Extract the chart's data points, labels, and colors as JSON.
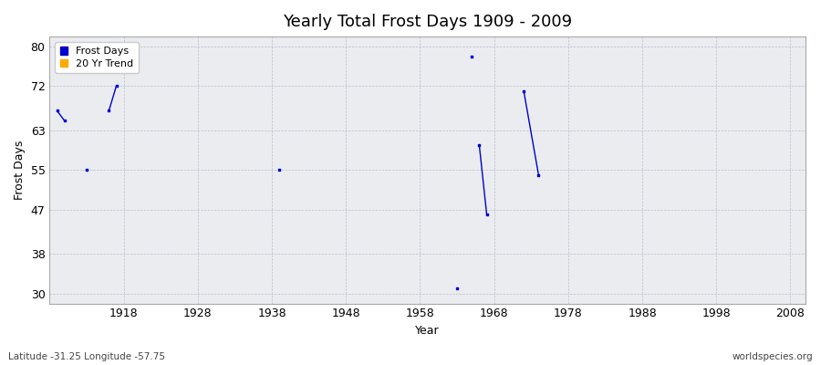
{
  "title": "Yearly Total Frost Days 1909 - 2009",
  "xlabel": "Year",
  "ylabel": "Frost Days",
  "xlim": [
    1908,
    2010
  ],
  "ylim": [
    28,
    82
  ],
  "yticks": [
    30,
    38,
    47,
    55,
    63,
    72,
    80
  ],
  "xticks": [
    1918,
    1928,
    1938,
    1948,
    1958,
    1968,
    1978,
    1988,
    1998,
    2008
  ],
  "background_color": "#ffffff",
  "plot_bg_color": "#eaecf0",
  "frost_days_color": "#0000cc",
  "trend_color": "#ffaa00",
  "frost_points": [
    [
      1909,
      67
    ],
    [
      1910,
      65
    ],
    [
      1913,
      55
    ],
    [
      1916,
      67
    ],
    [
      1917,
      72
    ],
    [
      1939,
      55
    ],
    [
      1963,
      31
    ],
    [
      1965,
      78
    ],
    [
      1966,
      60
    ],
    [
      1967,
      46
    ],
    [
      1972,
      71
    ],
    [
      1974,
      54
    ]
  ],
  "line_segments": [
    [
      [
        1909,
        67
      ],
      [
        1910,
        65
      ]
    ],
    [
      [
        1916,
        67
      ],
      [
        1917,
        72
      ]
    ],
    [
      [
        1966,
        60
      ],
      [
        1967,
        46
      ]
    ],
    [
      [
        1972,
        71
      ],
      [
        1974,
        54
      ]
    ]
  ],
  "footer_left": "Latitude -31.25 Longitude -57.75",
  "footer_right": "worldspecies.org",
  "legend_frost_label": "Frost Days",
  "legend_trend_label": "20 Yr Trend",
  "title_fontsize": 13,
  "axis_label_fontsize": 9,
  "tick_fontsize": 9,
  "legend_fontsize": 8,
  "footer_fontsize": 7.5
}
